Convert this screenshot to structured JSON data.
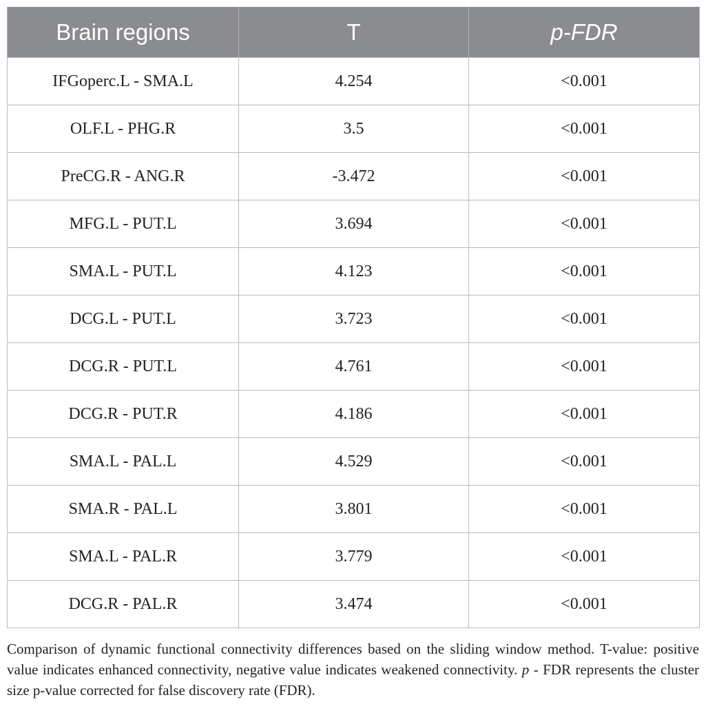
{
  "table": {
    "headers": [
      "Brain regions",
      "T",
      "p-FDR"
    ],
    "rows": [
      [
        "IFGoperc.L - SMA.L",
        "4.254",
        "<0.001"
      ],
      [
        "OLF.L - PHG.R",
        "3.5",
        "<0.001"
      ],
      [
        "PreCG.R - ANG.R",
        "-3.472",
        "<0.001"
      ],
      [
        "MFG.L - PUT.L",
        "3.694",
        "<0.001"
      ],
      [
        "SMA.L - PUT.L",
        "4.123",
        "<0.001"
      ],
      [
        "DCG.L - PUT.L",
        "3.723",
        "<0.001"
      ],
      [
        "DCG.R - PUT.L",
        "4.761",
        "<0.001"
      ],
      [
        "DCG.R - PUT.R",
        "4.186",
        "<0.001"
      ],
      [
        "SMA.L - PAL.L",
        "4.529",
        "<0.001"
      ],
      [
        "SMA.R - PAL.L",
        "3.801",
        "<0.001"
      ],
      [
        "SMA.L - PAL.R",
        "3.779",
        "<0.001"
      ],
      [
        "DCG.R - PAL.R",
        "3.474",
        "<0.001"
      ]
    ]
  },
  "caption": {
    "part1": "Comparison of dynamic functional connectivity differences based on the sliding window method. T-value: positive value indicates enhanced connectivity, negative value indicates weakened connectivity. ",
    "p_symbol": "p",
    "part2": " - FDR represents the cluster size p-value corrected for false discovery rate (FDR)."
  },
  "colors": {
    "header_bg": "#8a8c8f",
    "header_text": "#ffffff",
    "grid": "#b9b9b9",
    "body_text": "#222222"
  }
}
